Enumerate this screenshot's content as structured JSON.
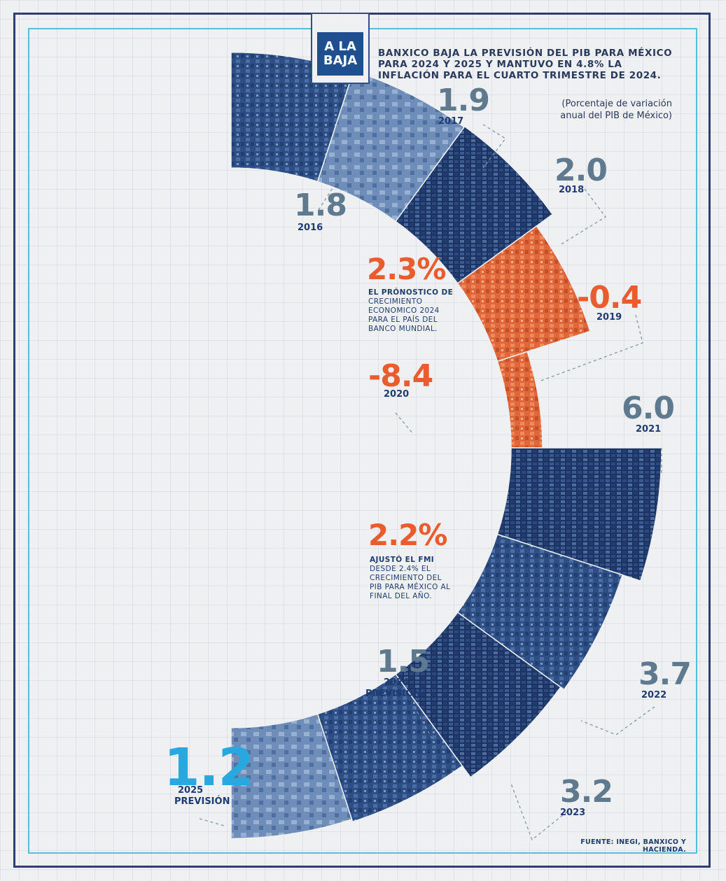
{
  "header": {
    "badge_line1": "A LA",
    "badge_line2": "BAJA",
    "headline": "BANXICO BAJA LA PREVISIÓN DEL PIB PARA MÉXICO PARA 2024 Y 2025 Y MANTUVO EN 4.8% LA INFLACIÓN PARA EL CUARTO TRIMESTRE DE 2024.",
    "subtitle_line1": "(Porcentaje de variación",
    "subtitle_line2": "anual del PIB de México)"
  },
  "colors": {
    "navy": "#1f3c70",
    "slate": "#5f7a8e",
    "orange": "#ea5b2d",
    "cyan": "#29a8e0",
    "frame": "#56bfd8"
  },
  "chart_data": {
    "type": "bar",
    "title": "BANXICO BAJA LA PREVISIÓN DEL PIB PARA MÉXICO PARA 2024 Y 2025 Y MANTUVO EN 4.8% LA INFLACIÓN PARA EL CUARTO TRIMESTRE DE 2024.",
    "ylabel": "(Porcentaje de variación anual del PIB de México)",
    "categories": [
      "2016",
      "2017",
      "2018",
      "2019",
      "2020",
      "2021",
      "2022",
      "2023",
      "2024",
      "2025"
    ],
    "values": [
      1.8,
      1.9,
      2.0,
      -0.4,
      -8.4,
      6.0,
      3.7,
      3.2,
      1.5,
      1.2
    ],
    "value_labels": [
      "1.8",
      "1.9",
      "2.0",
      "-0.4",
      "-8.4",
      "6.0",
      "3.7",
      "3.2",
      "1.5",
      "1.2"
    ],
    "year_labels": [
      "2016",
      "2017",
      "2018",
      "2019",
      "2020",
      "2021",
      "2022",
      "2023",
      "2024",
      "2025"
    ],
    "forecast_labels": [
      "",
      "",
      "",
      "",
      "",
      "",
      "",
      "",
      "PREVISIÓN",
      "PREVISIÓN"
    ]
  },
  "notes": {
    "wb_value": "2.3%",
    "wb_line1": "EL PRÓNOSTICO DE",
    "wb_line2": "CRECIMIENTO",
    "wb_line3": "ECONOMICO 2024",
    "wb_line4": "PARA EL PAÍS DEL",
    "wb_line5": "BANCO MUNDIAL.",
    "imf_value": "2.2%",
    "imf_line1": "AJUSTÓ EL FMI",
    "imf_line2": "DESDE 2.4% EL",
    "imf_line3": "CRECIMIENTO DEL",
    "imf_line4": "PIB PARA MÉXICO AL",
    "imf_line5": "FINAL DEL AÑO."
  },
  "source": "FUENTE: INEGI, BANXICO Y HACIENDA."
}
